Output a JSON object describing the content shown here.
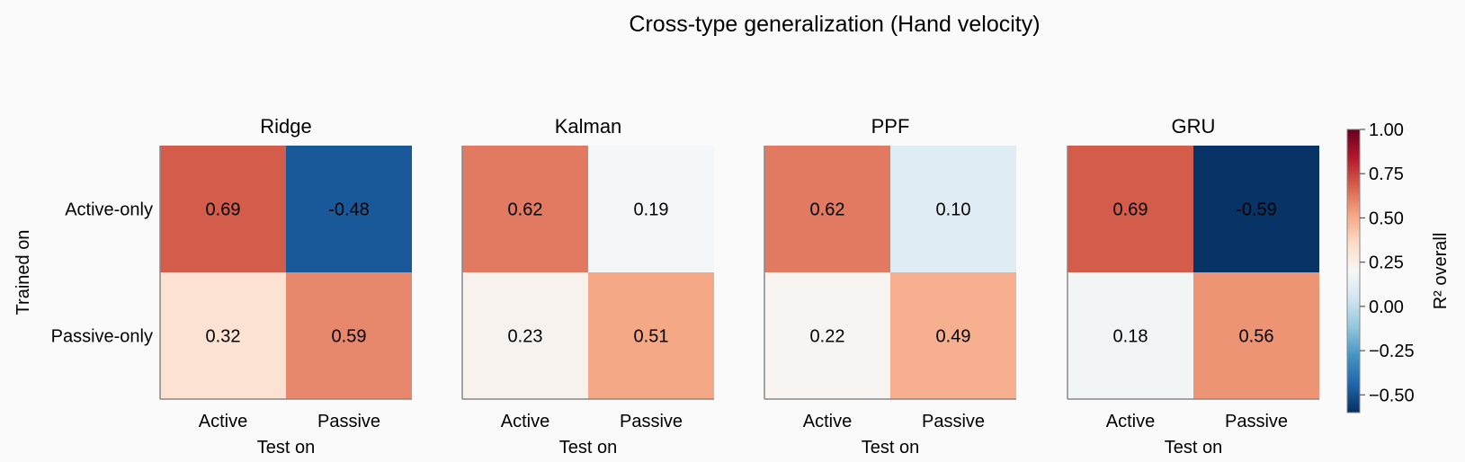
{
  "chart_data": {
    "type": "heatmap",
    "title": "Cross-type generalization (Hand velocity)",
    "ylabel": "Trained on",
    "xlabel": "Test on",
    "row_labels": [
      "Active-only",
      "Passive-only"
    ],
    "col_labels": [
      "Active",
      "Passive"
    ],
    "panels": [
      {
        "name": "Ridge",
        "cells": [
          [
            "0.69",
            "-0.48"
          ],
          [
            "0.32",
            "0.59"
          ]
        ],
        "values": [
          [
            0.69,
            -0.48
          ],
          [
            0.32,
            0.59
          ]
        ]
      },
      {
        "name": "Kalman",
        "cells": [
          [
            "0.62",
            "0.19"
          ],
          [
            "0.23",
            "0.51"
          ]
        ],
        "values": [
          [
            0.62,
            0.19
          ],
          [
            0.23,
            0.51
          ]
        ]
      },
      {
        "name": "PPF",
        "cells": [
          [
            "0.62",
            "0.10"
          ],
          [
            "0.22",
            "0.49"
          ]
        ],
        "values": [
          [
            0.62,
            0.1
          ],
          [
            0.22,
            0.49
          ]
        ]
      },
      {
        "name": "GRU",
        "cells": [
          [
            "0.69",
            "-0.59"
          ],
          [
            "0.18",
            "0.56"
          ]
        ],
        "values": [
          [
            0.69,
            -0.59
          ],
          [
            0.18,
            0.56
          ]
        ]
      }
    ],
    "colorbar": {
      "label": "R² overall",
      "range": [
        -0.6,
        1.0
      ],
      "ticks": [
        "1.00",
        "0.75",
        "0.50",
        "0.25",
        "0.00",
        "−0.25",
        "−0.50"
      ],
      "tick_values": [
        1.0,
        0.75,
        0.5,
        0.25,
        0.0,
        -0.25,
        -0.5
      ],
      "colormap": "RdBu_r"
    }
  }
}
